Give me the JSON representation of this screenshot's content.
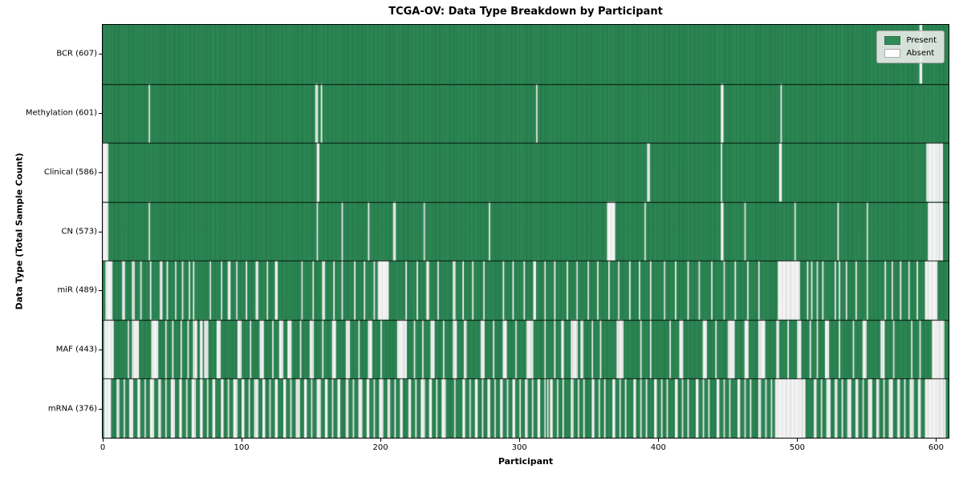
{
  "title": "TCGA-OV: Data Type Breakdown by Participant",
  "legend": {
    "items": [
      {
        "label": "Present",
        "color": "#2e8b57"
      },
      {
        "label": "Absent",
        "color": "#ffffff"
      }
    ],
    "position": "upper right"
  },
  "chart_data": {
    "type": "heatmap",
    "title": "TCGA-OV: Data Type Breakdown by Participant",
    "xlabel": "Participant",
    "ylabel": "Data Type (Total Sample Count)",
    "x_ticks": [
      0,
      100,
      200,
      300,
      400,
      500,
      600
    ],
    "xlim": [
      0,
      609
    ],
    "n_participants": 609,
    "grid": false,
    "colors": {
      "present": "#2e8b57",
      "absent": "#ffffff"
    },
    "rows": [
      {
        "label": "BCR",
        "count": 607,
        "display": "BCR (607)",
        "absent": [
          [
            588,
            2
          ]
        ]
      },
      {
        "label": "Methylation",
        "count": 601,
        "display": "Methylation (601)",
        "absent": [
          [
            33,
            1
          ],
          [
            153,
            2
          ],
          [
            157,
            1
          ],
          [
            312,
            1
          ],
          [
            445,
            2
          ],
          [
            488,
            1
          ]
        ]
      },
      {
        "label": "Clinical",
        "count": 586,
        "display": "Clinical (586)",
        "absent": [
          [
            0,
            4
          ],
          [
            154,
            2
          ],
          [
            392,
            2
          ],
          [
            445,
            1
          ],
          [
            487,
            2
          ],
          [
            593,
            12
          ]
        ]
      },
      {
        "label": "CN",
        "count": 573,
        "display": "CN (573)",
        "absent": [
          [
            0,
            4
          ],
          [
            33,
            1
          ],
          [
            154,
            1
          ],
          [
            172,
            1
          ],
          [
            191,
            1
          ],
          [
            209,
            2
          ],
          [
            231,
            1
          ],
          [
            278,
            1
          ],
          [
            363,
            6
          ],
          [
            390,
            1
          ],
          [
            445,
            2
          ],
          [
            462,
            1
          ],
          [
            498,
            1
          ],
          [
            529,
            1
          ],
          [
            550,
            1
          ],
          [
            594,
            11
          ]
        ]
      },
      {
        "label": "miR",
        "count": 489,
        "display": "miR (489)",
        "absent": [
          [
            2,
            5
          ],
          [
            14,
            2
          ],
          [
            21,
            2
          ],
          [
            27,
            1
          ],
          [
            34,
            1
          ],
          [
            41,
            2
          ],
          [
            46,
            1
          ],
          [
            52,
            1
          ],
          [
            57,
            1
          ],
          [
            62,
            1
          ],
          [
            65,
            1
          ],
          [
            77,
            1
          ],
          [
            85,
            1
          ],
          [
            90,
            2
          ],
          [
            96,
            1
          ],
          [
            103,
            1
          ],
          [
            110,
            2
          ],
          [
            118,
            1
          ],
          [
            124,
            2
          ],
          [
            143,
            1
          ],
          [
            151,
            1
          ],
          [
            158,
            2
          ],
          [
            166,
            1
          ],
          [
            172,
            1
          ],
          [
            181,
            1
          ],
          [
            188,
            1
          ],
          [
            195,
            1
          ],
          [
            198,
            8
          ],
          [
            218,
            1
          ],
          [
            226,
            1
          ],
          [
            233,
            2
          ],
          [
            241,
            1
          ],
          [
            252,
            2
          ],
          [
            259,
            1
          ],
          [
            266,
            1
          ],
          [
            274,
            1
          ],
          [
            288,
            1
          ],
          [
            295,
            1
          ],
          [
            303,
            1
          ],
          [
            310,
            2
          ],
          [
            318,
            1
          ],
          [
            325,
            1
          ],
          [
            334,
            1
          ],
          [
            341,
            1
          ],
          [
            349,
            1
          ],
          [
            356,
            1
          ],
          [
            364,
            1
          ],
          [
            371,
            1
          ],
          [
            379,
            1
          ],
          [
            386,
            1
          ],
          [
            394,
            1
          ],
          [
            404,
            1
          ],
          [
            412,
            1
          ],
          [
            421,
            1
          ],
          [
            429,
            1
          ],
          [
            438,
            1
          ],
          [
            447,
            1
          ],
          [
            455,
            1
          ],
          [
            464,
            1
          ],
          [
            472,
            1
          ],
          [
            486,
            16
          ],
          [
            507,
            1
          ],
          [
            510,
            1
          ],
          [
            514,
            1
          ],
          [
            518,
            1
          ],
          [
            527,
            1
          ],
          [
            530,
            1
          ],
          [
            535,
            1
          ],
          [
            542,
            1
          ],
          [
            550,
            1
          ],
          [
            563,
            1
          ],
          [
            568,
            1
          ],
          [
            574,
            1
          ],
          [
            580,
            1
          ],
          [
            586,
            1
          ],
          [
            592,
            9
          ]
        ]
      },
      {
        "label": "MAF",
        "count": 443,
        "display": "MAF (443)",
        "absent": [
          [
            1,
            7
          ],
          [
            18,
            1
          ],
          [
            21,
            5
          ],
          [
            35,
            5
          ],
          [
            45,
            1
          ],
          [
            50,
            1
          ],
          [
            56,
            1
          ],
          [
            61,
            1
          ],
          [
            65,
            3
          ],
          [
            70,
            2
          ],
          [
            73,
            3
          ],
          [
            82,
            3
          ],
          [
            97,
            3
          ],
          [
            106,
            1
          ],
          [
            113,
            3
          ],
          [
            122,
            1
          ],
          [
            127,
            3
          ],
          [
            133,
            3
          ],
          [
            142,
            1
          ],
          [
            149,
            3
          ],
          [
            158,
            1
          ],
          [
            165,
            3
          ],
          [
            175,
            3
          ],
          [
            184,
            1
          ],
          [
            191,
            3
          ],
          [
            200,
            1
          ],
          [
            212,
            7
          ],
          [
            224,
            1
          ],
          [
            230,
            1
          ],
          [
            236,
            3
          ],
          [
            245,
            1
          ],
          [
            252,
            3
          ],
          [
            260,
            2
          ],
          [
            272,
            3
          ],
          [
            281,
            1
          ],
          [
            288,
            3
          ],
          [
            297,
            1
          ],
          [
            305,
            5
          ],
          [
            318,
            1
          ],
          [
            325,
            1
          ],
          [
            330,
            2
          ],
          [
            337,
            5
          ],
          [
            344,
            2
          ],
          [
            352,
            1
          ],
          [
            358,
            1
          ],
          [
            370,
            5
          ],
          [
            387,
            1
          ],
          [
            394,
            1
          ],
          [
            408,
            1
          ],
          [
            415,
            3
          ],
          [
            432,
            3
          ],
          [
            441,
            1
          ],
          [
            450,
            5
          ],
          [
            462,
            3
          ],
          [
            472,
            5
          ],
          [
            485,
            2
          ],
          [
            493,
            1
          ],
          [
            500,
            3
          ],
          [
            509,
            1
          ],
          [
            514,
            1
          ],
          [
            520,
            3
          ],
          [
            530,
            1
          ],
          [
            540,
            1
          ],
          [
            547,
            3
          ],
          [
            560,
            3
          ],
          [
            569,
            1
          ],
          [
            582,
            1
          ],
          [
            588,
            1
          ],
          [
            597,
            9
          ]
        ]
      },
      {
        "label": "mRNA",
        "count": 376,
        "display": "mRNA (376)",
        "absent": [
          [
            1,
            5
          ],
          [
            10,
            2
          ],
          [
            15,
            1
          ],
          [
            19,
            3
          ],
          [
            25,
            2
          ],
          [
            30,
            1
          ],
          [
            34,
            3
          ],
          [
            40,
            2
          ],
          [
            45,
            1
          ],
          [
            49,
            3
          ],
          [
            55,
            2
          ],
          [
            60,
            1
          ],
          [
            64,
            3
          ],
          [
            70,
            2
          ],
          [
            75,
            1
          ],
          [
            79,
            2
          ],
          [
            85,
            2
          ],
          [
            90,
            1
          ],
          [
            94,
            3
          ],
          [
            100,
            2
          ],
          [
            105,
            1
          ],
          [
            109,
            3
          ],
          [
            115,
            2
          ],
          [
            120,
            1
          ],
          [
            124,
            2
          ],
          [
            130,
            2
          ],
          [
            135,
            1
          ],
          [
            139,
            3
          ],
          [
            145,
            2
          ],
          [
            150,
            1
          ],
          [
            154,
            3
          ],
          [
            160,
            2
          ],
          [
            165,
            1
          ],
          [
            169,
            2
          ],
          [
            175,
            2
          ],
          [
            180,
            1
          ],
          [
            184,
            3
          ],
          [
            190,
            2
          ],
          [
            195,
            1
          ],
          [
            199,
            3
          ],
          [
            205,
            2
          ],
          [
            210,
            1
          ],
          [
            214,
            2
          ],
          [
            220,
            2
          ],
          [
            225,
            1
          ],
          [
            229,
            3
          ],
          [
            235,
            2
          ],
          [
            240,
            1
          ],
          [
            244,
            3
          ],
          [
            253,
            1
          ],
          [
            259,
            2
          ],
          [
            264,
            1
          ],
          [
            268,
            2
          ],
          [
            273,
            1
          ],
          [
            277,
            2
          ],
          [
            282,
            1
          ],
          [
            286,
            2
          ],
          [
            291,
            1
          ],
          [
            295,
            2
          ],
          [
            300,
            1
          ],
          [
            304,
            2
          ],
          [
            309,
            1
          ],
          [
            313,
            2
          ],
          [
            318,
            1
          ],
          [
            320,
            1
          ],
          [
            322,
            2
          ],
          [
            327,
            1
          ],
          [
            331,
            1
          ],
          [
            337,
            2
          ],
          [
            342,
            1
          ],
          [
            346,
            1
          ],
          [
            352,
            2
          ],
          [
            357,
            1
          ],
          [
            361,
            1
          ],
          [
            367,
            2
          ],
          [
            372,
            1
          ],
          [
            376,
            1
          ],
          [
            382,
            2
          ],
          [
            387,
            1
          ],
          [
            391,
            1
          ],
          [
            397,
            2
          ],
          [
            402,
            1
          ],
          [
            406,
            1
          ],
          [
            412,
            2
          ],
          [
            417,
            1
          ],
          [
            421,
            1
          ],
          [
            427,
            2
          ],
          [
            432,
            1
          ],
          [
            436,
            1
          ],
          [
            442,
            2
          ],
          [
            447,
            1
          ],
          [
            451,
            1
          ],
          [
            457,
            2
          ],
          [
            462,
            1
          ],
          [
            466,
            1
          ],
          [
            472,
            2
          ],
          [
            477,
            1
          ],
          [
            481,
            1
          ],
          [
            484,
            22
          ],
          [
            512,
            2
          ],
          [
            517,
            1
          ],
          [
            521,
            3
          ],
          [
            527,
            2
          ],
          [
            532,
            1
          ],
          [
            536,
            3
          ],
          [
            542,
            2
          ],
          [
            547,
            1
          ],
          [
            551,
            3
          ],
          [
            557,
            2
          ],
          [
            562,
            1
          ],
          [
            566,
            3
          ],
          [
            572,
            2
          ],
          [
            577,
            1
          ],
          [
            581,
            3
          ],
          [
            587,
            2
          ],
          [
            592,
            15
          ]
        ]
      }
    ],
    "legend_entries": [
      "Present",
      "Absent"
    ]
  }
}
